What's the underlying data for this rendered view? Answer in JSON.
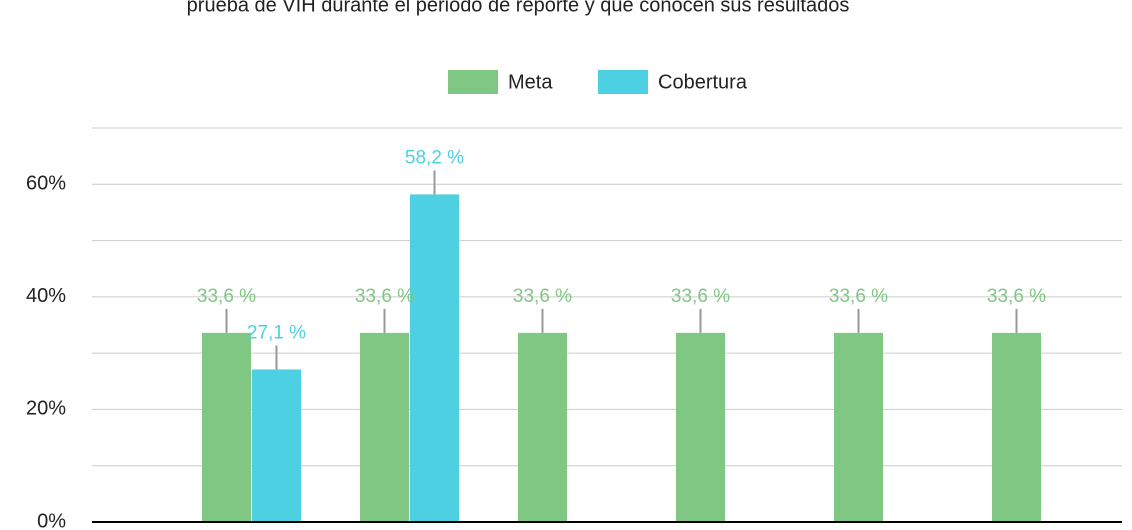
{
  "chart_data": {
    "type": "bar",
    "title": "prueba de VIH durante el periodo de reporte y que conocen sus resultados",
    "categories": [
      null,
      null,
      null,
      null,
      null,
      null
    ],
    "series": [
      {
        "name": "Meta",
        "color": "#81c784",
        "values": [
          33.6,
          33.6,
          33.6,
          33.6,
          33.6,
          33.6
        ],
        "value_labels": [
          "33,6 %",
          "33,6 %",
          "33,6 %",
          "33,6 %",
          "33,6 %",
          "33,6 %"
        ]
      },
      {
        "name": "Cobertura",
        "color": "#4dd0e1",
        "values": [
          27.1,
          58.2,
          null,
          null,
          null,
          null
        ],
        "value_labels": [
          "27,1 %",
          "58,2 %",
          null,
          null,
          null,
          null
        ]
      }
    ],
    "ylim": [
      0,
      70
    ],
    "yticks": [
      {
        "value": 0,
        "label": "0%"
      },
      {
        "value": 20,
        "label": "20%"
      },
      {
        "value": 40,
        "label": "40%"
      },
      {
        "value": 60,
        "label": "60%"
      }
    ],
    "minor_yticks": [
      10,
      30,
      50,
      70
    ],
    "grid": true,
    "legend": "top"
  }
}
